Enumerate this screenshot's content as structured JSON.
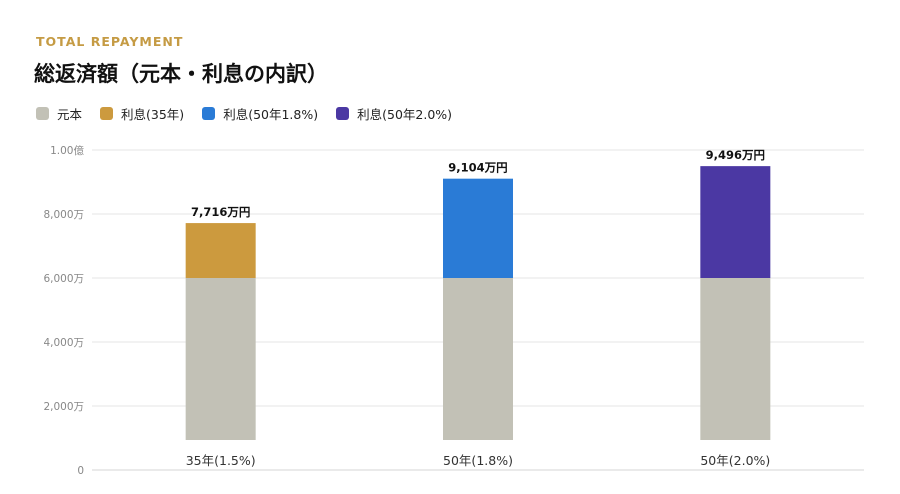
{
  "header": {
    "eyebrow": "TOTAL REPAYMENT",
    "title": "総返済額（元本・利息の内訳）"
  },
  "legend": [
    {
      "label": "元本",
      "color": "#c2c1b6"
    },
    {
      "label": "利息(35年)",
      "color": "#cc9a3e"
    },
    {
      "label": "利息(50年1.8%)",
      "color": "#2a7bd6"
    },
    {
      "label": "利息(50年2.0%)",
      "color": "#4b38a3"
    }
  ],
  "chart_data": {
    "type": "bar",
    "stacked": true,
    "categories": [
      "35年(1.5%)",
      "50年(1.8%)",
      "50年(2.0%)"
    ],
    "series": [
      {
        "name": "元本",
        "values": [
          6000,
          6000,
          6000
        ],
        "color": "#c2c1b6"
      },
      {
        "name": "利息(35年)",
        "values": [
          1716,
          0,
          0
        ],
        "color": "#cc9a3e"
      },
      {
        "name": "利息(50年1.8%)",
        "values": [
          0,
          3104,
          0
        ],
        "color": "#2a7bd6"
      },
      {
        "name": "利息(50年2.0%)",
        "values": [
          0,
          0,
          3496
        ],
        "color": "#4b38a3"
      }
    ],
    "totals_labels": [
      "7,716万円",
      "9,104万円",
      "9,496万円"
    ],
    "y_ticks": [
      {
        "value": 0,
        "label": "0"
      },
      {
        "value": 2000,
        "label": "2,000万"
      },
      {
        "value": 4000,
        "label": "4,000万"
      },
      {
        "value": 6000,
        "label": "6,000万"
      },
      {
        "value": 8000,
        "label": "8,000万"
      },
      {
        "value": 10000,
        "label": "1.00億"
      }
    ],
    "ylim": [
      0,
      10000
    ],
    "grid": true,
    "legend_position": "top-left"
  }
}
